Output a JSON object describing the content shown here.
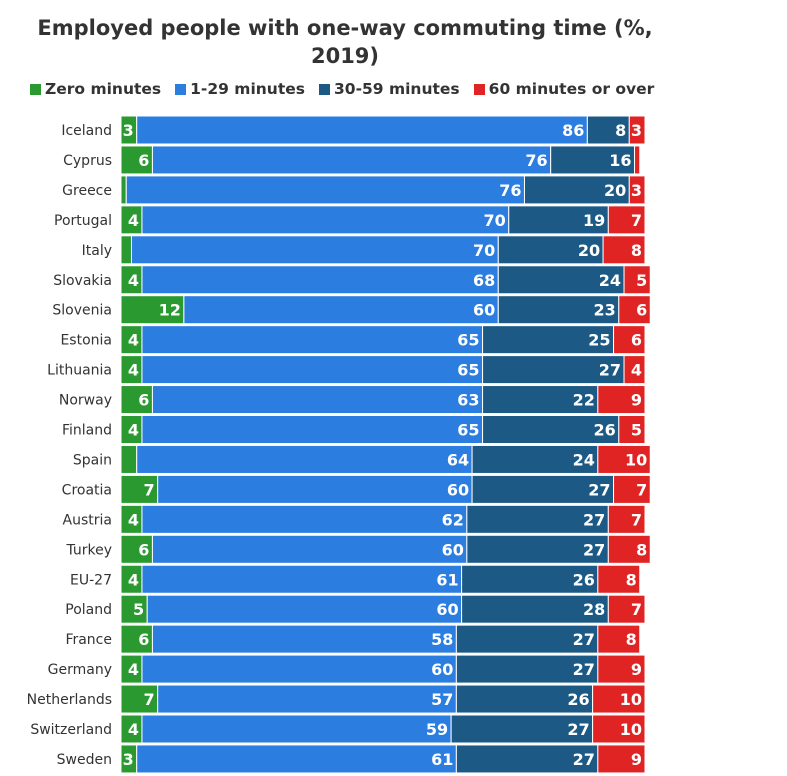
{
  "chart_data": {
    "type": "bar",
    "orientation": "horizontal",
    "stacked": true,
    "title": "Employed people with one-way commuting time (%, 2019)",
    "xlabel": "",
    "ylabel": "",
    "xlim": [
      0,
      100
    ],
    "grid": false,
    "legend_position": "top",
    "categories": [
      "Iceland",
      "Cyprus",
      "Greece",
      "Portugal",
      "Italy",
      "Slovakia",
      "Slovenia",
      "Estonia",
      "Lithuania",
      "Norway",
      "Finland",
      "Spain",
      "Croatia",
      "Austria",
      "Turkey",
      "EU-27",
      "Poland",
      "France",
      "Germany",
      "Netherlands",
      "Switzerland",
      "Sweden"
    ],
    "series": [
      {
        "name": "Zero minutes",
        "color": "#2a9a30",
        "values": [
          3,
          6,
          1,
          4,
          2,
          4,
          12,
          4,
          4,
          6,
          4,
          3,
          7,
          4,
          6,
          4,
          5,
          6,
          4,
          7,
          4,
          3
        ],
        "labels": [
          "3",
          "6",
          "",
          "4",
          "",
          "4",
          "12",
          "4",
          "4",
          "6",
          "4",
          "",
          "7",
          "4",
          "6",
          "4",
          "5",
          "6",
          "4",
          "7",
          "4",
          "3"
        ]
      },
      {
        "name": "1-29 minutes",
        "color": "#2b7de0",
        "values": [
          86,
          76,
          76,
          70,
          70,
          68,
          60,
          65,
          65,
          63,
          65,
          64,
          60,
          62,
          60,
          61,
          60,
          58,
          60,
          57,
          59,
          61
        ],
        "labels": [
          "86",
          "76",
          "76",
          "70",
          "70",
          "68",
          "60",
          "65",
          "65",
          "63",
          "65",
          "64",
          "60",
          "62",
          "60",
          "61",
          "60",
          "58",
          "60",
          "57",
          "59",
          "61"
        ]
      },
      {
        "name": "30-59 minutes",
        "color": "#1c5a85",
        "values": [
          8,
          16,
          20,
          19,
          20,
          24,
          23,
          25,
          27,
          22,
          26,
          24,
          27,
          27,
          27,
          26,
          28,
          27,
          27,
          26,
          27,
          27
        ],
        "labels": [
          "8",
          "16",
          "20",
          "19",
          "20",
          "24",
          "23",
          "25",
          "27",
          "22",
          "26",
          "24",
          "27",
          "27",
          "27",
          "26",
          "28",
          "27",
          "27",
          "26",
          "27",
          "27"
        ]
      },
      {
        "name": "60 minutes or over",
        "color": "#e02424",
        "values": [
          3,
          1,
          3,
          7,
          8,
          5,
          6,
          6,
          4,
          9,
          5,
          10,
          7,
          7,
          8,
          8,
          7,
          8,
          9,
          10,
          10,
          9
        ],
        "labels": [
          "3",
          "",
          "3",
          "7",
          "8",
          "5",
          "6",
          "6",
          "4",
          "9",
          "5",
          "10",
          "7",
          "7",
          "8",
          "8",
          "7",
          "8",
          "9",
          "10",
          "10",
          "9"
        ]
      }
    ]
  }
}
